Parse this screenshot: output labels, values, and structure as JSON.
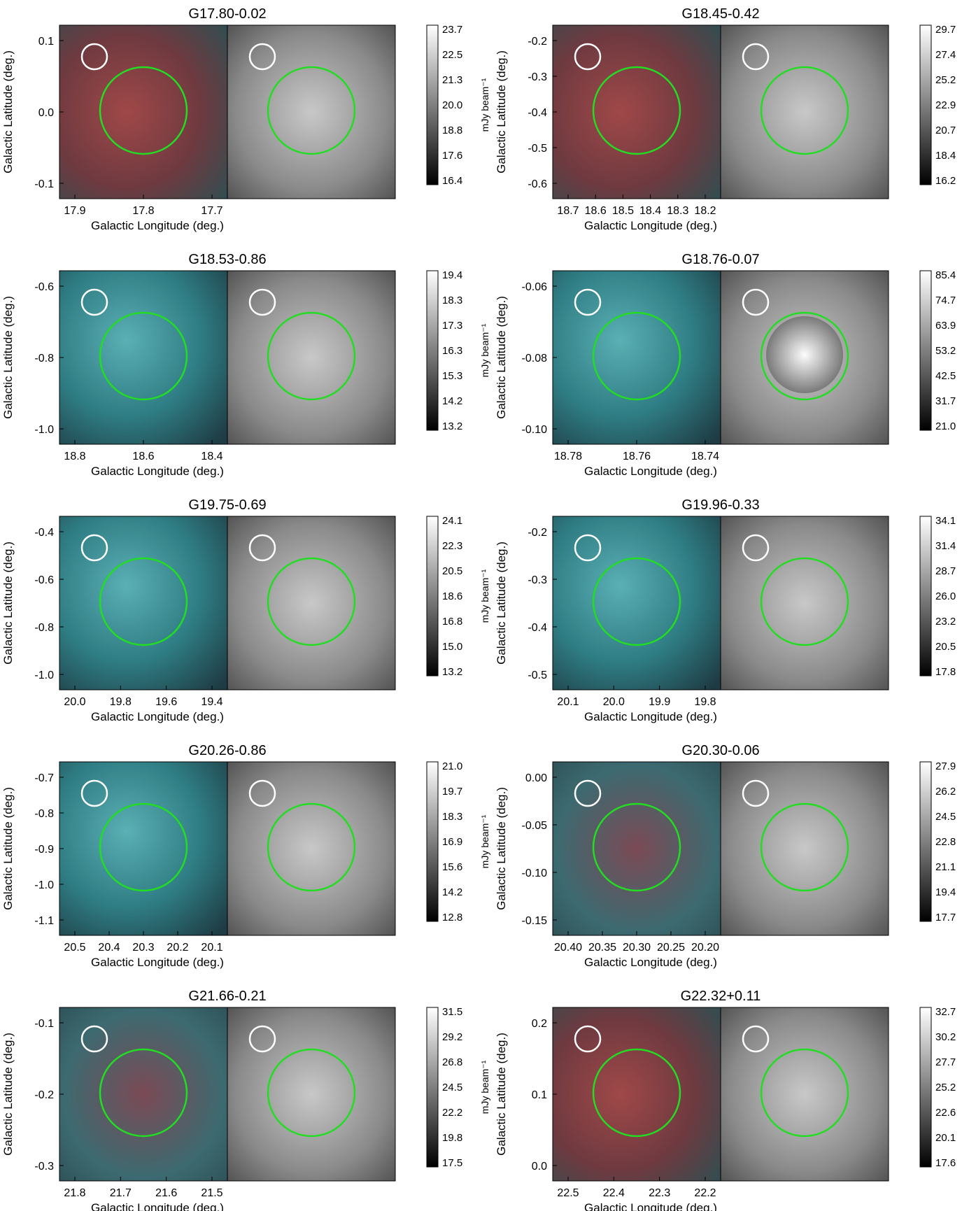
{
  "colorbar_unit": "mJy beam⁻¹",
  "panels": [
    {
      "title": "G17.80-0.02",
      "ylabel": "Galactic Latitude (deg.)",
      "xlabel": "Galactic Longitude (deg.)",
      "yticks": [
        "0.1",
        "0.0",
        "-0.1"
      ],
      "xticks": [
        "17.9",
        "17.8",
        "17.7"
      ],
      "cbar": [
        "23.7",
        "22.5",
        "21.3",
        "20.0",
        "18.8",
        "17.6",
        "16.4"
      ],
      "palette": "red"
    },
    {
      "title": "G18.45-0.42",
      "ylabel": "Galactic Latitude (deg.)",
      "xlabel": "Galactic Longitude (deg.)",
      "yticks": [
        "-0.2",
        "-0.3",
        "-0.4",
        "-0.5",
        "-0.6"
      ],
      "xticks": [
        "18.7",
        "18.6",
        "18.5",
        "18.4",
        "18.3",
        "18.2"
      ],
      "cbar": [
        "29.7",
        "27.4",
        "25.2",
        "22.9",
        "20.7",
        "18.4",
        "16.2"
      ],
      "palette": "red"
    },
    {
      "title": "G18.53-0.86",
      "ylabel": "Galactic Latitude (deg.)",
      "xlabel": "Galactic Longitude (deg.)",
      "yticks": [
        "-0.6",
        "-0.8",
        "-1.0"
      ],
      "xticks": [
        "18.8",
        "18.6",
        "18.4"
      ],
      "cbar": [
        "19.4",
        "18.3",
        "17.3",
        "16.3",
        "15.3",
        "14.2",
        "13.2"
      ],
      "palette": "cyan"
    },
    {
      "title": "G18.76-0.07",
      "ylabel": "Galactic Latitude (deg.)",
      "xlabel": "Galactic Longitude (deg.)",
      "yticks": [
        "-0.06",
        "-0.08",
        "-0.10"
      ],
      "xticks": [
        "18.78",
        "18.76",
        "18.74"
      ],
      "cbar": [
        "85.4",
        "74.7",
        "63.9",
        "53.2",
        "42.5",
        "31.7",
        "21.0"
      ],
      "palette": "cyan"
    },
    {
      "title": "G19.75-0.69",
      "ylabel": "Galactic Latitude (deg.)",
      "xlabel": "Galactic Longitude (deg.)",
      "yticks": [
        "-0.4",
        "-0.6",
        "-0.8",
        "-1.0"
      ],
      "xticks": [
        "20.0",
        "19.8",
        "19.6",
        "19.4"
      ],
      "cbar": [
        "24.1",
        "22.3",
        "20.5",
        "18.6",
        "16.8",
        "15.0",
        "13.2"
      ],
      "palette": "cyan"
    },
    {
      "title": "G19.96-0.33",
      "ylabel": "Galactic Latitude (deg.)",
      "xlabel": "Galactic Longitude (deg.)",
      "yticks": [
        "-0.2",
        "-0.3",
        "-0.4",
        "-0.5"
      ],
      "xticks": [
        "20.1",
        "20.0",
        "19.9",
        "19.8"
      ],
      "cbar": [
        "34.1",
        "31.4",
        "28.7",
        "26.0",
        "23.2",
        "20.5",
        "17.8"
      ],
      "palette": "cyan"
    },
    {
      "title": "G20.26-0.86",
      "ylabel": "Galactic Latitude (deg.)",
      "xlabel": "Galactic Longitude (deg.)",
      "yticks": [
        "-0.7",
        "-0.8",
        "-0.9",
        "-1.0",
        "-1.1"
      ],
      "xticks": [
        "20.5",
        "20.4",
        "20.3",
        "20.2",
        "20.1"
      ],
      "cbar": [
        "21.0",
        "19.7",
        "18.3",
        "16.9",
        "15.6",
        "14.2",
        "12.8"
      ],
      "palette": "cyan"
    },
    {
      "title": "G20.30-0.06",
      "ylabel": "Galactic Latitude (deg.)",
      "xlabel": "Galactic Longitude (deg.)",
      "yticks": [
        "0.00",
        "-0.05",
        "-0.10",
        "-0.15"
      ],
      "xticks": [
        "20.40",
        "20.35",
        "20.30",
        "20.25",
        "20.20"
      ],
      "cbar": [
        "27.9",
        "26.2",
        "24.5",
        "22.8",
        "21.1",
        "19.4",
        "17.7"
      ],
      "palette": "mixed"
    },
    {
      "title": "G21.66-0.21",
      "ylabel": "Galactic Latitude (deg.)",
      "xlabel": "Galactic Longitude (deg.)",
      "yticks": [
        "-0.1",
        "-0.2",
        "-0.3"
      ],
      "xticks": [
        "21.8",
        "21.7",
        "21.6",
        "21.5"
      ],
      "cbar": [
        "31.5",
        "29.2",
        "26.8",
        "24.5",
        "22.2",
        "19.8",
        "17.5"
      ],
      "palette": "mixed"
    },
    {
      "title": "G22.32+0.11",
      "ylabel": "Galactic Latitude (deg.)",
      "xlabel": "Galactic Longitude (deg.)",
      "yticks": [
        "0.2",
        "0.1",
        "0.0"
      ],
      "xticks": [
        "22.5",
        "22.4",
        "22.3",
        "22.2"
      ],
      "cbar": [
        "32.7",
        "30.2",
        "27.7",
        "25.2",
        "22.6",
        "20.1",
        "17.6"
      ],
      "palette": "red"
    }
  ],
  "colors": {
    "green_circle": "#22dd22",
    "white_circle": "#ffffff",
    "red_circle": "#ee1111",
    "cyan": "#33dddd",
    "red": "#cc3333"
  }
}
